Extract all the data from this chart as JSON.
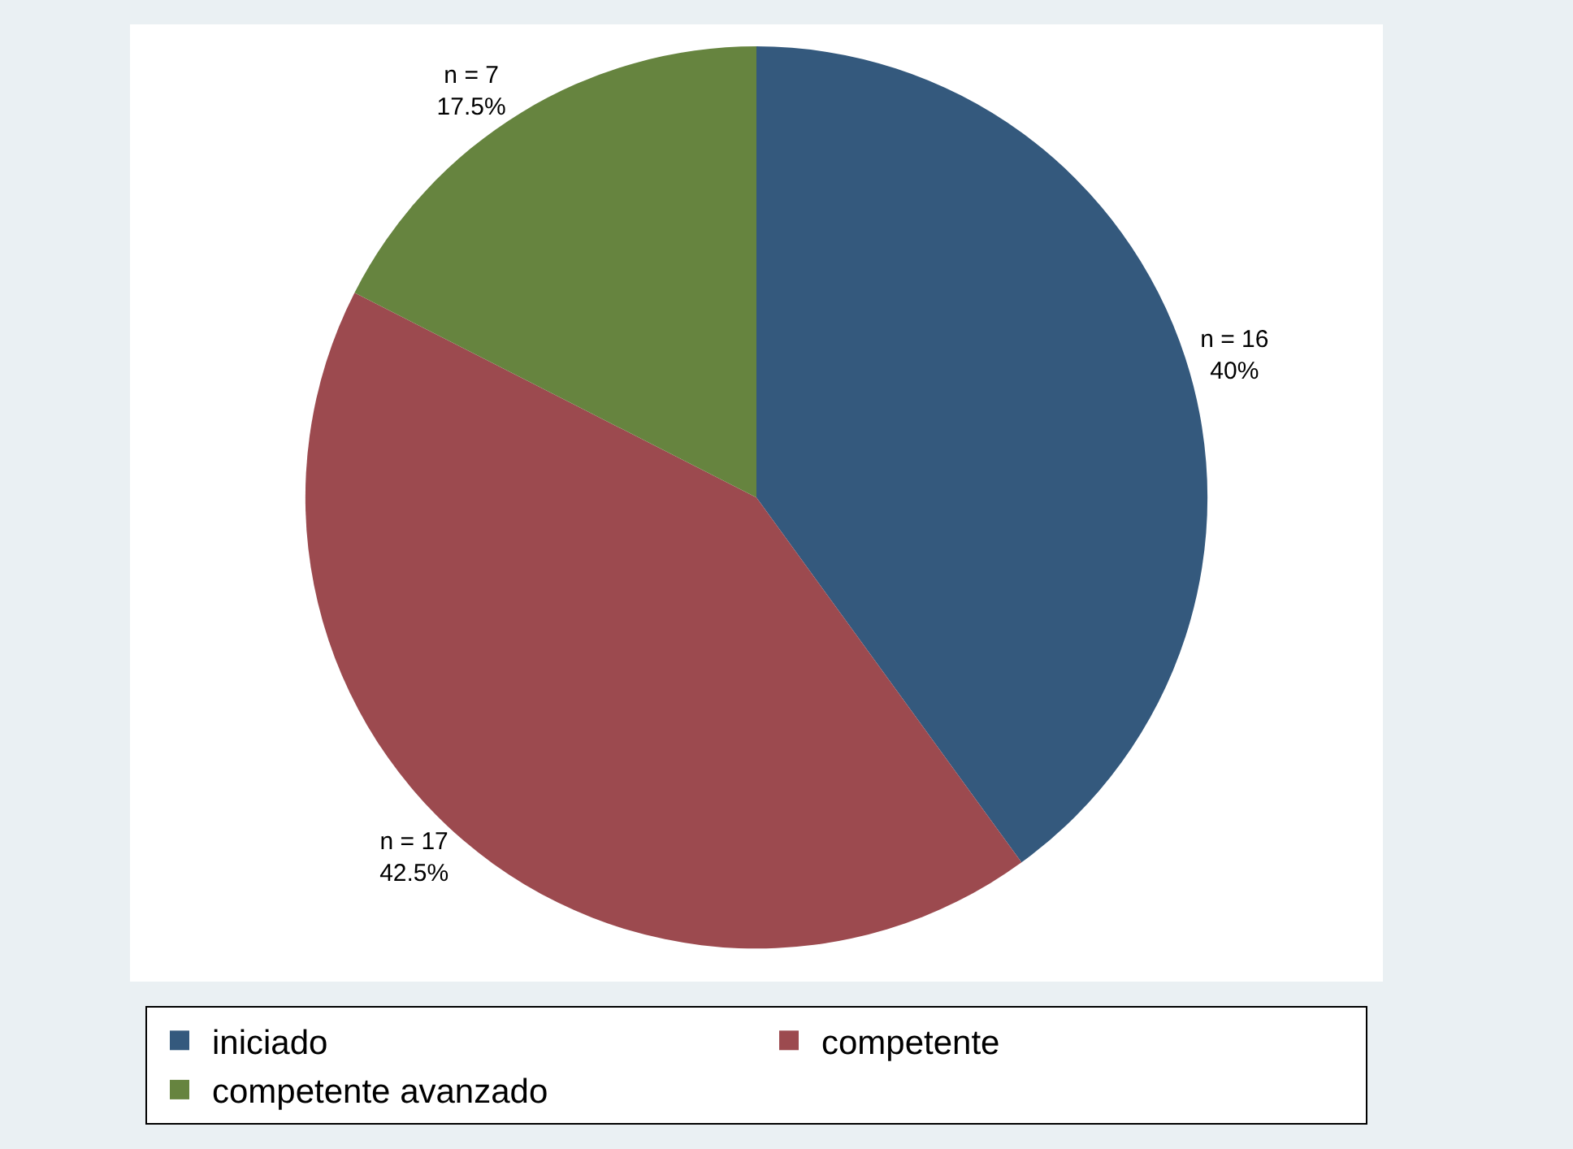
{
  "chart_data": {
    "type": "pie",
    "categories": [
      "iniciado",
      "competente",
      "competente avanzado"
    ],
    "values": [
      16,
      17,
      7
    ],
    "colors": [
      "#34597d",
      "#9c4a4f",
      "#66843f"
    ],
    "value_labels": [
      "n = 16\n40%",
      "n = 17\n42.5%",
      "n = 7\n17.5%"
    ],
    "legend": "bottom"
  }
}
